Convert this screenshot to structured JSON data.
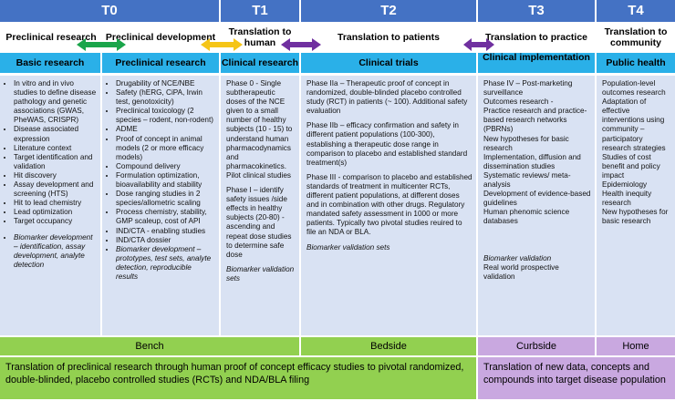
{
  "phases": [
    "T0",
    "T1",
    "T2",
    "T3",
    "T4"
  ],
  "stages": {
    "preclinical_research": "Preclinical research",
    "preclinical_development": "Preclinical development",
    "translation_to_human": "Translation to human",
    "translation_to_patients": "Translation to patients",
    "translation_to_practice": "Translation to practice",
    "translation_to_community": "Translation to community"
  },
  "arrow_colors": {
    "green": "#1aa54a",
    "yellow": "#f5c518",
    "purple": "#7030a0"
  },
  "headers": {
    "basic": "Basic research",
    "preclinical": "Preclinical research",
    "clinical_research": "Clinical research",
    "clinical_trials": "Clinical trials",
    "clinical_implementation": "Clinical implementation",
    "public_health": "Public health"
  },
  "basic": {
    "items": [
      "In vitro and in vivo studies to define disease pathology and genetic associations (GWAS, PheWAS, CRISPR)",
      "Disease associated expression",
      "Literature context",
      "Target identification and validation",
      "Hit discovery",
      "Assay development and screening (HTS)",
      "Hit to lead chemistry",
      "Lead optimization",
      "Target occupancy"
    ],
    "biomarker": "Biomarker development – identification, assay development, analyte detection"
  },
  "preclinical": {
    "items": [
      "Drugability of NCE/NBE",
      "Safety (hERG, CiPA, Irwin test, genotoxicity)",
      "Preclinical toxicology (2 species – rodent, non-rodent)",
      "ADME",
      "Proof of concept in animal models (2 or more efficacy models)",
      "Compound delivery",
      "Formulation optimization, bioavailability and stability",
      "Dose ranging studies in 2 species/allometric scaling",
      "Process chemistry, stability, GMP scaleup, cost of API",
      "IND/CTA - enabling studies",
      "IND/CTA dossier",
      "Biomarker development – prototypes, test sets, analyte detection, reproducible results"
    ]
  },
  "clinical_research": {
    "phase0": "Phase 0 - Single subtherapeutic doses of the NCE given to a small number of healthy subjects (10 - 15) to understand human pharmacodynamics and pharmacokinetics. Pilot clinical studies",
    "phase1": "Phase I – identify safety issues /side effects in healthy subjects (20-80) - ascending and repeat dose studies to determine safe dose",
    "biomarker": "Biomarker validation sets"
  },
  "clinical_trials": {
    "phase2a": "Phase IIa – Therapeutic proof of concept in randomized, double-blinded placebo controlled study (RCT) in patients (~ 100). Additional safety evaluation",
    "phase2b": "Phase IIb – efficacy confirmation and safety in different patient populations (100-300), establishing a therapeutic dose range in comparison to placebo and established standard treatment(s)",
    "phase3": "Phase III - comparison to placebo and established standards of treatment in multicenter RCTs, different patient populations, at different doses and in combination with other drugs. Regulatory mandated safety assessment in 1000 or more patients. Typically two pivotal studies reuired to file an NDA or BLA.",
    "biomarker": "Biomarker validation sets"
  },
  "implementation": {
    "lines": [
      "Phase IV – Post-marketing surveillance",
      "Outcomes research -",
      "Practice research and practice-based research networks (PBRNs)",
      "New hypotheses for basic research",
      "Implementation, diffusion and dissemination studies",
      "Systematic reviews/ meta-analysis",
      "Development of evidence-based guidelines",
      "Human phenomic science databases"
    ],
    "biomarker": "Biomarker validation",
    "rw": "Real world prospective validation"
  },
  "public_health": {
    "lines": [
      "Population-level outcomes research",
      "Adaptation of effective interventions using community – participatory research strategies",
      "Studies of cost benefit and policy impact",
      "Epidemiology",
      "Health inequity research",
      "New hypotheses for basic research"
    ]
  },
  "bottom": {
    "bench": "Bench",
    "bedside": "Bedside",
    "curbside": "Curbside",
    "home": "Home",
    "left_text": "Translation of preclinical research through human proof of concept efficacy studies to pivotal randomized, double-blinded, placebo controlled studies (RCTs) and NDA/BLA filing",
    "right_text": "Translation of new data, concepts and compounds into target disease population"
  }
}
